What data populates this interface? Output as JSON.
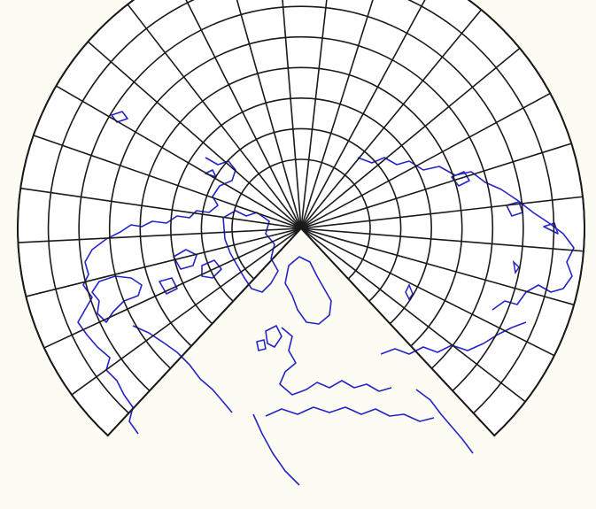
{
  "map": {
    "projection": "conic-conformal",
    "frame_background": "#fdfcf2",
    "land_color": "#ffffff",
    "graticule_color": "#1a1a1a",
    "coastline_color": "#2424c8",
    "meridian_spacing_deg": 15,
    "parallels_shown": 8,
    "gap_facing": "north",
    "labels": []
  }
}
